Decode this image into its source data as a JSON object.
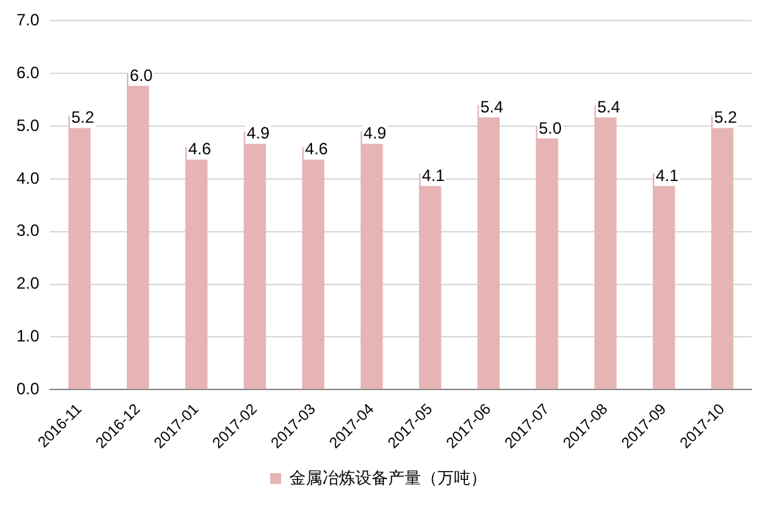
{
  "chart_data": {
    "type": "bar",
    "categories": [
      "2016-11",
      "2016-12",
      "2017-01",
      "2017-02",
      "2017-03",
      "2017-04",
      "2017-05",
      "2017-06",
      "2017-07",
      "2017-08",
      "2017-09",
      "2017-10"
    ],
    "series": [
      {
        "name": "金属冶炼设备产量（万吨）",
        "color": "#e6b4b4",
        "values": [
          5.2,
          6.0,
          4.6,
          4.9,
          4.6,
          4.9,
          4.1,
          5.4,
          5.0,
          5.4,
          4.1,
          5.2
        ],
        "value_labels": [
          "5.2",
          "6.0",
          "4.6",
          "4.9",
          "4.6",
          "4.9",
          "4.1",
          "5.4",
          "5.0",
          "5.4",
          "4.1",
          "5.2"
        ]
      }
    ],
    "ylim": [
      0,
      7
    ],
    "yticks": [
      {
        "value": 0,
        "label": "0.0"
      },
      {
        "value": 1,
        "label": "1.0"
      },
      {
        "value": 2,
        "label": "2.0"
      },
      {
        "value": 3,
        "label": "3.0"
      },
      {
        "value": 4,
        "label": "4.0"
      },
      {
        "value": 5,
        "label": "5.0"
      },
      {
        "value": 6,
        "label": "6.0"
      },
      {
        "value": 7,
        "label": "7.0"
      }
    ],
    "grid": "y",
    "legend": "bottom"
  }
}
